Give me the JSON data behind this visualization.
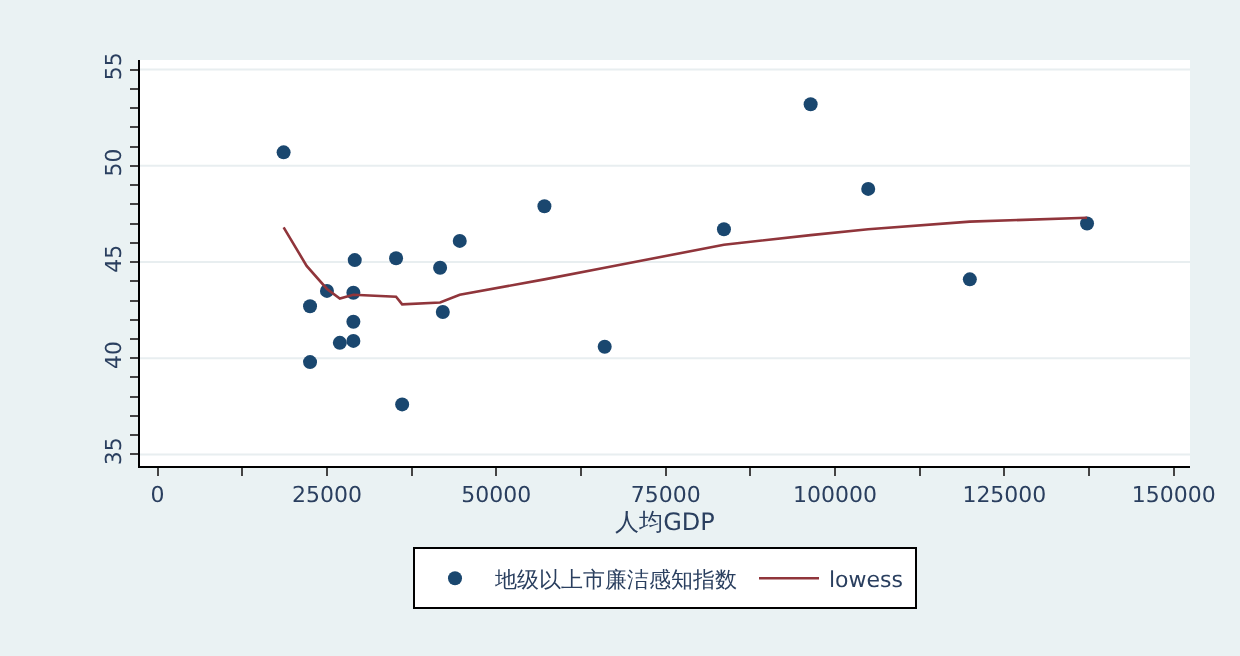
{
  "chart_data": {
    "type": "scatter",
    "xlabel": "人均GDP",
    "xlim": [
      -2600,
      152400
    ],
    "ylim": [
      34.4,
      55.5
    ],
    "xticks": [
      0,
      {
        "value": 12500,
        "label": null
      },
      25000,
      {
        "value": 37500,
        "label": null
      },
      50000,
      {
        "value": 62500,
        "label": null
      },
      75000,
      {
        "value": 87500,
        "label": null
      },
      100000,
      {
        "value": 112500,
        "label": null
      },
      125000,
      {
        "value": 137500,
        "label": null
      },
      150000
    ],
    "yticks": [
      35,
      {
        "value": 36,
        "label": null
      },
      {
        "value": 37,
        "label": null
      },
      {
        "value": 38,
        "label": null
      },
      {
        "value": 39,
        "label": null
      },
      40,
      {
        "value": 41,
        "label": null
      },
      {
        "value": 42,
        "label": null
      },
      {
        "value": 43,
        "label": null
      },
      {
        "value": 44,
        "label": null
      },
      45,
      {
        "value": 46,
        "label": null
      },
      {
        "value": 47,
        "label": null
      },
      {
        "value": 48,
        "label": null
      },
      {
        "value": 49,
        "label": null
      },
      50,
      {
        "value": 51,
        "label": null
      },
      {
        "value": 52,
        "label": null
      },
      {
        "value": 53,
        "label": null
      },
      {
        "value": 54,
        "label": null
      },
      55
    ],
    "grid": "y",
    "legend": "bottom",
    "series": [
      {
        "name": "地级以上市廉洁感知指数",
        "marker": "circle",
        "color": "#1a476f",
        "x": [
          18600,
          22500,
          22500,
          25000,
          26900,
          28900,
          28900,
          28900,
          29100,
          35200,
          36100,
          41700,
          42100,
          44600,
          57100,
          66000,
          83600,
          96400,
          104900,
          119900,
          137200
        ],
        "values": [
          50.7,
          42.7,
          39.8,
          43.5,
          40.8,
          40.9,
          41.9,
          43.4,
          45.1,
          45.2,
          37.6,
          44.7,
          42.4,
          46.1,
          47.9,
          40.6,
          46.7,
          53.2,
          48.8,
          44.1,
          47.0
        ]
      },
      {
        "name": "lowess",
        "type": "line",
        "marker": "none",
        "line_style": "solid",
        "color": "#90353b",
        "x": [
          18600,
          22000,
          25000,
          26900,
          28900,
          35200,
          36100,
          41700,
          44600,
          57100,
          66000,
          83600,
          96400,
          104900,
          119900,
          137200
        ],
        "values": [
          46.8,
          44.8,
          43.6,
          43.1,
          43.3,
          43.2,
          42.8,
          42.9,
          43.3,
          44.1,
          44.7,
          45.9,
          46.4,
          46.7,
          47.1,
          47.3
        ]
      }
    ]
  }
}
